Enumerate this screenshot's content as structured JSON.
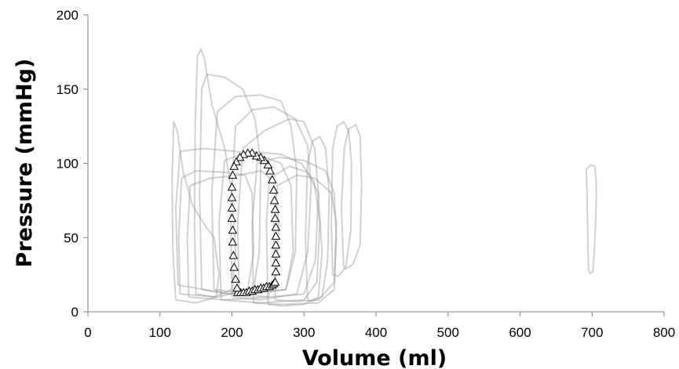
{
  "chart_data": {
    "type": "scatter",
    "title": "",
    "xlabel": "Volume (ml)",
    "ylabel": "Pressure (mmHg)",
    "xlim": [
      0,
      800
    ],
    "ylim": [
      0,
      200
    ],
    "xticks": [
      0,
      100,
      200,
      300,
      400,
      500,
      600,
      700,
      800
    ],
    "yticks": [
      0,
      50,
      100,
      150,
      200
    ],
    "grid": false,
    "legend": "none",
    "colors": {
      "loops": "#9a9a9a",
      "markers": "#000000"
    },
    "series": [
      {
        "type": "line",
        "style": "gray pressure-volume loops",
        "loops": [
          [
            [
              122,
              8
            ],
            [
              118,
              40
            ],
            [
              117,
              90
            ],
            [
              119,
              128
            ],
            [
              124,
              122
            ],
            [
              132,
              95
            ],
            [
              145,
              72
            ],
            [
              160,
              60
            ],
            [
              175,
              50
            ],
            [
              182,
              25
            ],
            [
              178,
              10
            ],
            [
              150,
              6
            ],
            [
              122,
              8
            ]
          ],
          [
            [
              150,
              12
            ],
            [
              148,
              60
            ],
            [
              149,
              130
            ],
            [
              152,
              172
            ],
            [
              157,
              177
            ],
            [
              162,
              170
            ],
            [
              172,
              140
            ],
            [
              190,
              110
            ],
            [
              200,
              80
            ],
            [
              205,
              40
            ],
            [
              200,
              15
            ],
            [
              175,
              10
            ],
            [
              150,
              12
            ]
          ],
          [
            [
              158,
              15
            ],
            [
              155,
              80
            ],
            [
              158,
              150
            ],
            [
              165,
              160
            ],
            [
              190,
              158
            ],
            [
              215,
              150
            ],
            [
              232,
              130
            ],
            [
              240,
              100
            ],
            [
              238,
              40
            ],
            [
              230,
              15
            ],
            [
              195,
              12
            ],
            [
              158,
              15
            ]
          ],
          [
            [
              175,
              15
            ],
            [
              172,
              80
            ],
            [
              180,
              135
            ],
            [
              205,
              145
            ],
            [
              240,
              146
            ],
            [
              268,
              142
            ],
            [
              282,
              125
            ],
            [
              290,
              95
            ],
            [
              288,
              40
            ],
            [
              275,
              15
            ],
            [
              225,
              12
            ],
            [
              175,
              15
            ]
          ],
          [
            [
              200,
              10
            ],
            [
              198,
              70
            ],
            [
              205,
              125
            ],
            [
              228,
              136
            ],
            [
              258,
              138
            ],
            [
              288,
              130
            ],
            [
              305,
              112
            ],
            [
              310,
              85
            ],
            [
              305,
              40
            ],
            [
              290,
              12
            ],
            [
              240,
              8
            ],
            [
              200,
              10
            ]
          ],
          [
            [
              210,
              12
            ],
            [
              208,
              60
            ],
            [
              215,
              110
            ],
            [
              245,
              122
            ],
            [
              280,
              130
            ],
            [
              300,
              128
            ],
            [
              315,
              110
            ],
            [
              320,
              80
            ],
            [
              316,
              35
            ],
            [
              300,
              12
            ],
            [
              250,
              10
            ],
            [
              210,
              12
            ]
          ],
          [
            [
              125,
              18
            ],
            [
              122,
              70
            ],
            [
              128,
              108
            ],
            [
              160,
              110
            ],
            [
              205,
              108
            ],
            [
              240,
              105
            ],
            [
              268,
              100
            ],
            [
              282,
              85
            ],
            [
              285,
              40
            ],
            [
              275,
              15
            ],
            [
              200,
              12
            ],
            [
              125,
              18
            ]
          ],
          [
            [
              185,
              8
            ],
            [
              182,
              60
            ],
            [
              190,
              102
            ],
            [
              225,
              108
            ],
            [
              268,
              106
            ],
            [
              296,
              100
            ],
            [
              314,
              88
            ],
            [
              322,
              60
            ],
            [
              318,
              20
            ],
            [
              300,
              8
            ],
            [
              240,
              6
            ],
            [
              185,
              8
            ]
          ],
          [
            [
              230,
              6
            ],
            [
              228,
              60
            ],
            [
              235,
              100
            ],
            [
              265,
              104
            ],
            [
              300,
              102
            ],
            [
              330,
              95
            ],
            [
              342,
              80
            ],
            [
              345,
              50
            ],
            [
              342,
              15
            ],
            [
              320,
              6
            ],
            [
              270,
              5
            ],
            [
              230,
              6
            ]
          ],
          [
            [
              260,
              8
            ],
            [
              258,
              60
            ],
            [
              263,
              85
            ],
            [
              290,
              92
            ],
            [
              315,
              90
            ],
            [
              338,
              80
            ],
            [
              345,
              60
            ],
            [
              342,
              20
            ],
            [
              320,
              8
            ],
            [
              290,
              7
            ],
            [
              260,
              8
            ]
          ],
          [
            [
              305,
              8
            ],
            [
              302,
              50
            ],
            [
              305,
              100
            ],
            [
              312,
              115
            ],
            [
              322,
              118
            ],
            [
              330,
              110
            ],
            [
              335,
              80
            ],
            [
              333,
              35
            ],
            [
              325,
              10
            ],
            [
              310,
              7
            ],
            [
              305,
              8
            ]
          ],
          [
            [
              340,
              25
            ],
            [
              338,
              60
            ],
            [
              340,
              110
            ],
            [
              346,
              125
            ],
            [
              355,
              128
            ],
            [
              362,
              122
            ],
            [
              366,
              100
            ],
            [
              365,
              55
            ],
            [
              358,
              30
            ],
            [
              348,
              24
            ],
            [
              340,
              25
            ]
          ],
          [
            [
              355,
              30
            ],
            [
              352,
              70
            ],
            [
              356,
              110
            ],
            [
              362,
              123
            ],
            [
              372,
              126
            ],
            [
              378,
              118
            ],
            [
              380,
              85
            ],
            [
              378,
              45
            ],
            [
              368,
              32
            ],
            [
              358,
              29
            ],
            [
              355,
              30
            ]
          ],
          [
            [
              128,
              12
            ],
            [
              126,
              50
            ],
            [
              130,
              90
            ],
            [
              150,
              95
            ],
            [
              190,
              94
            ],
            [
              218,
              92
            ],
            [
              228,
              80
            ],
            [
              230,
              40
            ],
            [
              222,
              15
            ],
            [
              180,
              10
            ],
            [
              128,
              12
            ]
          ],
          [
            [
              140,
              10
            ],
            [
              138,
              50
            ],
            [
              142,
              85
            ],
            [
              170,
              90
            ],
            [
              210,
              92
            ],
            [
              240,
              95
            ],
            [
              258,
              88
            ],
            [
              265,
              60
            ],
            [
              262,
              25
            ],
            [
              250,
              10
            ],
            [
              190,
              8
            ],
            [
              140,
              10
            ]
          ],
          [
            [
              250,
              5
            ],
            [
              248,
              60
            ],
            [
              252,
              90
            ],
            [
              280,
              98
            ],
            [
              305,
              94
            ],
            [
              320,
              80
            ],
            [
              325,
              40
            ],
            [
              320,
              10
            ],
            [
              300,
              5
            ],
            [
              270,
              4
            ],
            [
              250,
              5
            ]
          ],
          [
            [
              695,
              28
            ],
            [
              694,
              55
            ],
            [
              693,
              80
            ],
            [
              692,
              96
            ],
            [
              698,
              99
            ],
            [
              704,
              98
            ],
            [
              706,
              85
            ],
            [
              705,
              60
            ],
            [
              703,
              40
            ],
            [
              701,
              27
            ],
            [
              697,
              26
            ],
            [
              695,
              28
            ]
          ]
        ]
      },
      {
        "type": "scatter",
        "marker": "triangle",
        "points": [
          [
            208,
            13
          ],
          [
            212,
            13
          ],
          [
            216,
            13
          ],
          [
            220,
            13
          ],
          [
            224,
            14
          ],
          [
            228,
            14
          ],
          [
            232,
            15
          ],
          [
            236,
            15
          ],
          [
            240,
            16
          ],
          [
            244,
            16
          ],
          [
            248,
            17
          ],
          [
            252,
            17
          ],
          [
            256,
            18
          ],
          [
            258,
            19
          ],
          [
            260,
            20
          ],
          [
            261,
            27
          ],
          [
            261,
            33
          ],
          [
            261,
            39
          ],
          [
            261,
            45
          ],
          [
            261,
            51
          ],
          [
            261,
            57
          ],
          [
            260,
            63
          ],
          [
            260,
            69
          ],
          [
            259,
            75
          ],
          [
            258,
            82
          ],
          [
            256,
            89
          ],
          [
            253,
            95
          ],
          [
            250,
            99
          ],
          [
            245,
            102
          ],
          [
            240,
            104
          ],
          [
            234,
            105
          ],
          [
            228,
            107
          ],
          [
            222,
            107
          ],
          [
            216,
            106
          ],
          [
            211,
            104
          ],
          [
            206,
            101
          ],
          [
            203,
            98
          ],
          [
            201,
            92
          ],
          [
            200,
            84
          ],
          [
            200,
            77
          ],
          [
            200,
            70
          ],
          [
            200,
            63
          ],
          [
            201,
            55
          ],
          [
            201,
            47
          ],
          [
            202,
            38
          ],
          [
            203,
            30
          ],
          [
            205,
            22
          ],
          [
            207,
            16
          ]
        ]
      }
    ]
  }
}
